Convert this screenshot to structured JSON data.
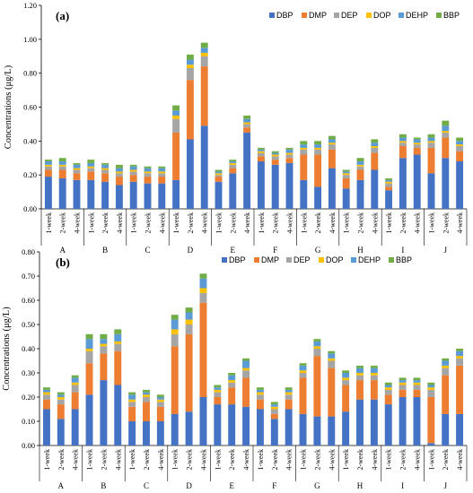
{
  "colors": {
    "DBP": "#4472c4",
    "DMP": "#ed7d31",
    "DEP": "#a5a5a5",
    "DOP": "#ffc000",
    "DEHP": "#5b9bd5",
    "BBP": "#70ad47"
  },
  "chart_data": [
    {
      "type": "bar",
      "stacked": true,
      "panel_label": "(a)",
      "ylabel": "Concentrations (μg/L)",
      "ylim": [
        0,
        1.2
      ],
      "yticks": [
        "0.00",
        "0.20",
        "0.40",
        "0.60",
        "0.80",
        "1.00",
        "1.20"
      ],
      "groups": [
        "A",
        "B",
        "C",
        "D",
        "E",
        "F",
        "G",
        "H",
        "I",
        "J"
      ],
      "subcategories": [
        "1-week",
        "2-week",
        "4-week"
      ],
      "legend": [
        "DBP",
        "DMP",
        "DEP",
        "DOP",
        "DEHP",
        "BBP"
      ],
      "series": [
        {
          "name": "DBP",
          "values": [
            0.19,
            0.18,
            0.17,
            0.17,
            0.16,
            0.14,
            0.16,
            0.15,
            0.15,
            0.17,
            0.41,
            0.49,
            0.16,
            0.21,
            0.45,
            0.28,
            0.26,
            0.27,
            0.17,
            0.13,
            0.24,
            0.12,
            0.17,
            0.23,
            0.11,
            0.3,
            0.32,
            0.21,
            0.3,
            0.28
          ]
        },
        {
          "name": "DMP",
          "values": [
            0.04,
            0.05,
            0.04,
            0.05,
            0.05,
            0.05,
            0.04,
            0.04,
            0.04,
            0.28,
            0.35,
            0.35,
            0.03,
            0.03,
            0.03,
            0.03,
            0.03,
            0.03,
            0.15,
            0.19,
            0.11,
            0.06,
            0.06,
            0.1,
            0.02,
            0.07,
            0.04,
            0.15,
            0.12,
            0.06
          ]
        },
        {
          "name": "DEP",
          "values": [
            0.02,
            0.02,
            0.02,
            0.02,
            0.02,
            0.02,
            0.02,
            0.02,
            0.02,
            0.08,
            0.07,
            0.06,
            0.01,
            0.02,
            0.02,
            0.02,
            0.02,
            0.02,
            0.03,
            0.03,
            0.03,
            0.02,
            0.02,
            0.03,
            0.02,
            0.02,
            0.02,
            0.03,
            0.03,
            0.03
          ]
        },
        {
          "name": "DOP",
          "values": [
            0.01,
            0.01,
            0.01,
            0.01,
            0.01,
            0.01,
            0.01,
            0.01,
            0.01,
            0.02,
            0.02,
            0.02,
            0.01,
            0.01,
            0.01,
            0.01,
            0.01,
            0.01,
            0.01,
            0.01,
            0.01,
            0.01,
            0.01,
            0.01,
            0.01,
            0.01,
            0.01,
            0.01,
            0.01,
            0.01
          ]
        },
        {
          "name": "DEHP",
          "values": [
            0.02,
            0.02,
            0.02,
            0.02,
            0.02,
            0.02,
            0.02,
            0.02,
            0.02,
            0.03,
            0.03,
            0.03,
            0.01,
            0.01,
            0.02,
            0.01,
            0.01,
            0.02,
            0.02,
            0.02,
            0.02,
            0.01,
            0.02,
            0.02,
            0.01,
            0.02,
            0.02,
            0.02,
            0.03,
            0.02
          ]
        },
        {
          "name": "BBP",
          "values": [
            0.01,
            0.02,
            0.01,
            0.02,
            0.01,
            0.02,
            0.01,
            0.01,
            0.01,
            0.03,
            0.03,
            0.03,
            0.01,
            0.01,
            0.02,
            0.01,
            0.01,
            0.01,
            0.02,
            0.02,
            0.02,
            0.01,
            0.02,
            0.02,
            0.01,
            0.02,
            0.01,
            0.02,
            0.03,
            0.02
          ]
        }
      ]
    },
    {
      "type": "bar",
      "stacked": true,
      "panel_label": "(b)",
      "ylabel": "Concentrations (μg/L)",
      "ylim": [
        0,
        0.8
      ],
      "yticks": [
        "0.00",
        "0.10",
        "0.20",
        "0.30",
        "0.40",
        "0.50",
        "0.60",
        "0.70",
        "0.80"
      ],
      "groups": [
        "A",
        "B",
        "C",
        "D",
        "E",
        "F",
        "G",
        "H",
        "I",
        "J"
      ],
      "subcategories": [
        "1-week",
        "2-week",
        "4-week"
      ],
      "legend": [
        "DBP",
        "DMP",
        "DEP",
        "DOP",
        "DEHP",
        "BBP"
      ],
      "series": [
        {
          "name": "DBP",
          "values": [
            0.15,
            0.11,
            0.15,
            0.21,
            0.27,
            0.25,
            0.1,
            0.1,
            0.1,
            0.13,
            0.14,
            0.2,
            0.17,
            0.17,
            0.16,
            0.15,
            0.11,
            0.15,
            0.13,
            0.12,
            0.12,
            0.14,
            0.19,
            0.19,
            0.17,
            0.2,
            0.2,
            0.01,
            0.13,
            0.13
          ]
        },
        {
          "name": "DMP",
          "values": [
            0.04,
            0.06,
            0.07,
            0.13,
            0.11,
            0.14,
            0.06,
            0.08,
            0.06,
            0.28,
            0.32,
            0.39,
            0.03,
            0.07,
            0.12,
            0.04,
            0.02,
            0.04,
            0.15,
            0.25,
            0.2,
            0.11,
            0.08,
            0.08,
            0.04,
            0.03,
            0.03,
            0.19,
            0.16,
            0.2
          ]
        },
        {
          "name": "DEP",
          "values": [
            0.02,
            0.02,
            0.03,
            0.05,
            0.03,
            0.03,
            0.02,
            0.02,
            0.02,
            0.05,
            0.04,
            0.04,
            0.02,
            0.02,
            0.03,
            0.02,
            0.02,
            0.02,
            0.02,
            0.03,
            0.03,
            0.02,
            0.02,
            0.02,
            0.02,
            0.02,
            0.02,
            0.03,
            0.03,
            0.03
          ]
        },
        {
          "name": "DOP",
          "values": [
            0.01,
            0.01,
            0.01,
            0.01,
            0.01,
            0.01,
            0.01,
            0.01,
            0.01,
            0.02,
            0.02,
            0.02,
            0.01,
            0.01,
            0.01,
            0.01,
            0.01,
            0.01,
            0.01,
            0.01,
            0.01,
            0.01,
            0.01,
            0.01,
            0.01,
            0.01,
            0.01,
            0.01,
            0.01,
            0.01
          ]
        },
        {
          "name": "DEHP",
          "values": [
            0.01,
            0.01,
            0.02,
            0.04,
            0.02,
            0.03,
            0.02,
            0.01,
            0.01,
            0.04,
            0.03,
            0.04,
            0.01,
            0.02,
            0.03,
            0.01,
            0.01,
            0.01,
            0.02,
            0.02,
            0.02,
            0.02,
            0.02,
            0.02,
            0.01,
            0.01,
            0.01,
            0.01,
            0.02,
            0.02
          ]
        },
        {
          "name": "BBP",
          "values": [
            0.01,
            0.01,
            0.01,
            0.02,
            0.02,
            0.02,
            0.01,
            0.01,
            0.01,
            0.02,
            0.02,
            0.02,
            0.01,
            0.01,
            0.01,
            0.01,
            0.01,
            0.01,
            0.01,
            0.01,
            0.01,
            0.01,
            0.01,
            0.01,
            0.01,
            0.01,
            0.01,
            0.01,
            0.01,
            0.01
          ]
        }
      ]
    }
  ]
}
